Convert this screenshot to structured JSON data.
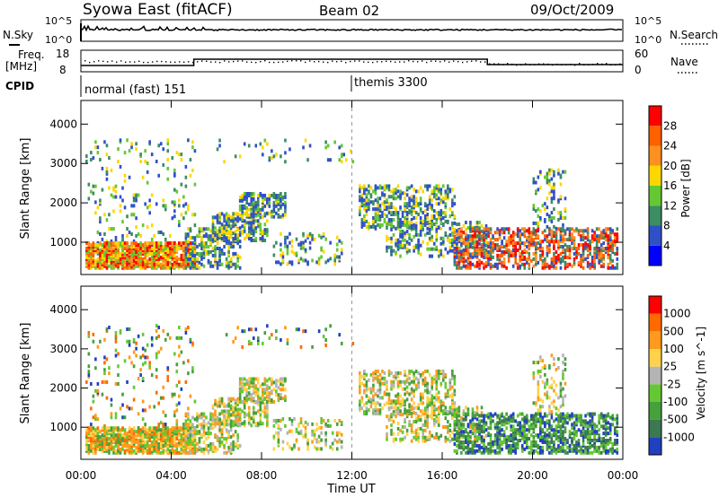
{
  "header": {
    "title": "Syowa East (fitACF)",
    "beam": "Beam 02",
    "date": "09/Oct/2009"
  },
  "top_panels": {
    "nsky_label": "N.Sky",
    "nsearch_label": "N.Search",
    "noise_ticks_left": [
      "10^5",
      "10^0"
    ],
    "noise_ticks_right": [
      "10^5",
      "10^0"
    ],
    "freq_label_1": "Freq.",
    "freq_label_2": "[MHz]",
    "freq_ticks": [
      "18",
      "8"
    ],
    "nave_ticks": [
      "60",
      "0"
    ],
    "nave_label": "Nave",
    "cpid_label": "CPID",
    "cpid_segments": [
      {
        "label": "normal (fast) 151",
        "start_hour": 0
      },
      {
        "label": "themis 3300",
        "start_hour": 12
      }
    ]
  },
  "chart_data": [
    {
      "type": "heatmap",
      "name": "power",
      "ylabel": "Slant Range [km]",
      "ylim": [
        180,
        4600
      ],
      "yticks": [
        1000,
        2000,
        3000,
        4000
      ],
      "xlim": [
        0,
        24
      ],
      "colorbar": {
        "label": "Power [dB]",
        "ticks": [
          "28",
          "24",
          "20",
          "16",
          "12",
          "8",
          "4"
        ],
        "colors": [
          "#0000ff",
          "#3050c8",
          "#3c8c64",
          "#64c832",
          "#ffd700",
          "#ff9020",
          "#ff6000",
          "#ff0000"
        ]
      }
    },
    {
      "type": "heatmap",
      "name": "velocity",
      "ylabel": "Slant Range [km]",
      "ylim": [
        180,
        4600
      ],
      "yticks": [
        1000,
        2000,
        3000,
        4000
      ],
      "xlim": [
        0,
        24
      ],
      "xlabel": "Time UT",
      "xticks": [
        "00:00",
        "04:00",
        "08:00",
        "12:00",
        "16:00",
        "20:00",
        "00:00"
      ],
      "colorbar": {
        "label": "Velocity [m s^-1]",
        "ticks": [
          "1000",
          "500",
          "100",
          "25",
          "-25",
          "-100",
          "-500",
          "-1000"
        ],
        "colors": [
          "#2040c0",
          "#3c7850",
          "#46a03c",
          "#64c832",
          "#b4b4b4",
          "#ffd24a",
          "#ff9a1e",
          "#ff6a00",
          "#ff0000"
        ]
      }
    }
  ]
}
